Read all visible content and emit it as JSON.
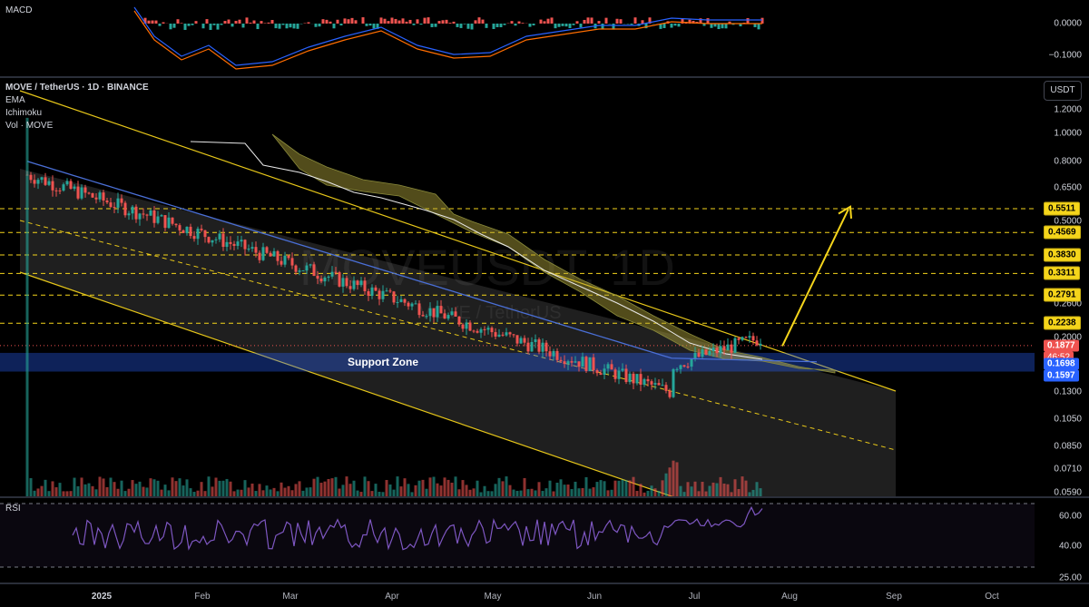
{
  "macd": {
    "title": "MACD",
    "ticks": [
      "0.0000",
      "−0.1000"
    ]
  },
  "chart": {
    "symbol_line": "MOVE / TetherUS · 1D · BINANCE",
    "indicators": [
      "EMA",
      "Ichimoku",
      "Vol · MOVE"
    ],
    "currency_button": "USDT",
    "watermark": "MOVEUSDT, 1D",
    "watermark_sub": "MOVE / TetherUS",
    "support_label": "Support Zone",
    "price_ticks": [
      {
        "label": "1.2000",
        "price": 1.2
      },
      {
        "label": "1.0000",
        "price": 1.0
      },
      {
        "label": "0.8000",
        "price": 0.8
      },
      {
        "label": "0.6500",
        "price": 0.65
      },
      {
        "label": "0.5000",
        "price": 0.5
      },
      {
        "label": "0.2600",
        "price": 0.26
      },
      {
        "label": "0.2000",
        "price": 0.2
      },
      {
        "label": "0.1300",
        "price": 0.13
      },
      {
        "label": "0.1050",
        "price": 0.105
      },
      {
        "label": "0.0850",
        "price": 0.085
      },
      {
        "label": "0.0710",
        "price": 0.071
      },
      {
        "label": "0.0590",
        "price": 0.059
      }
    ],
    "target_levels": [
      {
        "label": "0.5511",
        "price": 0.5511
      },
      {
        "label": "0.4569",
        "price": 0.4569
      },
      {
        "label": "0.3830",
        "price": 0.383
      },
      {
        "label": "0.3311",
        "price": 0.3311
      },
      {
        "label": "0.2791",
        "price": 0.2791
      },
      {
        "label": "0.2238",
        "price": 0.2238
      }
    ],
    "last_price": {
      "label": "0.1877",
      "price": 0.1877
    },
    "countdown": "46:52",
    "support_top": {
      "label": "0.1698",
      "price": 0.1698
    },
    "support_bottom": {
      "label": "0.1597",
      "price": 0.1597
    },
    "colors": {
      "up": "#26a69a",
      "down": "#ef5350",
      "target": "#f5d51b",
      "support": "#2962ff",
      "ema": "#4a6fd6",
      "channel": "#e6c619"
    }
  },
  "rsi": {
    "title": "RSI",
    "ticks": [
      "60.00",
      "40.00",
      "25.00"
    ]
  },
  "time_axis": [
    {
      "label": "2025",
      "year": true
    },
    {
      "label": "Feb",
      "year": false
    },
    {
      "label": "Mar",
      "year": false
    },
    {
      "label": "Apr",
      "year": false
    },
    {
      "label": "May",
      "year": false
    },
    {
      "label": "Jun",
      "year": false
    },
    {
      "label": "Jul",
      "year": false
    },
    {
      "label": "Aug",
      "year": false
    },
    {
      "label": "Sep",
      "year": false
    },
    {
      "label": "Oct",
      "year": false
    }
  ]
}
